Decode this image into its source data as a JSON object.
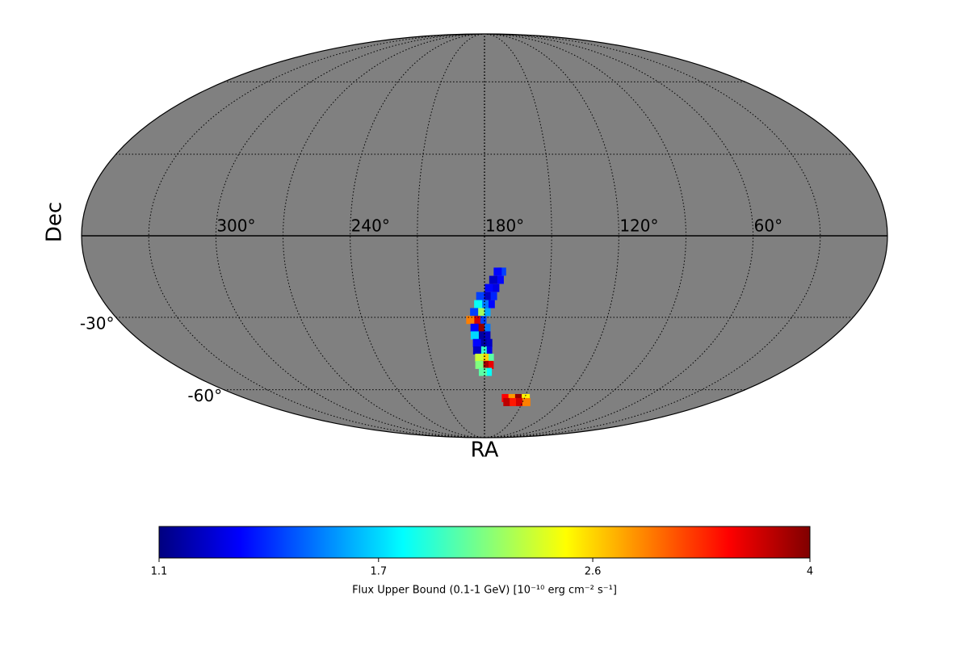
{
  "chart_data": {
    "type": "skymap",
    "projection": "mollweide",
    "xlabel": "RA",
    "ylabel": "Dec",
    "background_color": "#808080",
    "xticks": [
      {
        "value": 300,
        "label": "300°"
      },
      {
        "value": 240,
        "label": "240°"
      },
      {
        "value": 180,
        "label": "180°"
      },
      {
        "value": 120,
        "label": "120°"
      },
      {
        "value": 60,
        "label": "60°"
      }
    ],
    "yticks": [
      {
        "value": -30,
        "label": "-30°"
      },
      {
        "value": -60,
        "label": "-60°"
      }
    ],
    "grid_ra": [
      30,
      60,
      90,
      120,
      150,
      180,
      210,
      240,
      270,
      300,
      330
    ],
    "grid_dec": [
      -60,
      -30,
      0,
      30,
      60
    ],
    "colormap": "jet",
    "log_scale": true,
    "clim": [
      1.1,
      4
    ],
    "cticks": [
      1.1,
      1.7,
      2.6,
      4
    ],
    "colorbar_label": "Flux Upper Bound (0.1-1 GeV) [10⁻¹⁰ erg cm⁻² s⁻¹]",
    "cells": {
      "ra": [
        172,
        174,
        173,
        176,
        175,
        178,
        176,
        179,
        182,
        177,
        180,
        183,
        179,
        182,
        185,
        181,
        184,
        187,
        179,
        182,
        185,
        179,
        182,
        185,
        178,
        181,
        184,
        178,
        181,
        184,
        177,
        180,
        183,
        177,
        180,
        183,
        178,
        181,
        164,
        159,
        154,
        149,
        162,
        157,
        152,
        147
      ],
      "dec": [
        -13,
        -13,
        -16,
        -16,
        -19,
        -19,
        -22,
        -22,
        -22,
        -25,
        -25,
        -25,
        -28,
        -28,
        -28,
        -31,
        -31,
        -31,
        -34,
        -34,
        -34,
        -37,
        -37,
        -37,
        -40,
        -40,
        -40,
        -43,
        -43,
        -43,
        -46,
        -46,
        -46,
        -49,
        -49,
        -49,
        -52,
        -52,
        -64,
        -64,
        -64,
        -64,
        -66,
        -66,
        -66,
        -66
      ],
      "values": [
        1.4,
        1.3,
        1.3,
        1.2,
        1.25,
        1.3,
        1.35,
        1.2,
        1.4,
        1.3,
        1.5,
        1.8,
        1.6,
        2.2,
        1.4,
        1.4,
        3.6,
        2.9,
        1.5,
        3.9,
        1.3,
        1.2,
        1.15,
        1.7,
        1.2,
        1.15,
        1.3,
        1.25,
        1.9,
        1.2,
        2.0,
        2.6,
        2.3,
        3.5,
        3.8,
        2.1,
        1.8,
        2.0,
        3.4,
        2.8,
        3.9,
        2.5,
        3.7,
        3.3,
        3.6,
        2.9
      ]
    }
  }
}
